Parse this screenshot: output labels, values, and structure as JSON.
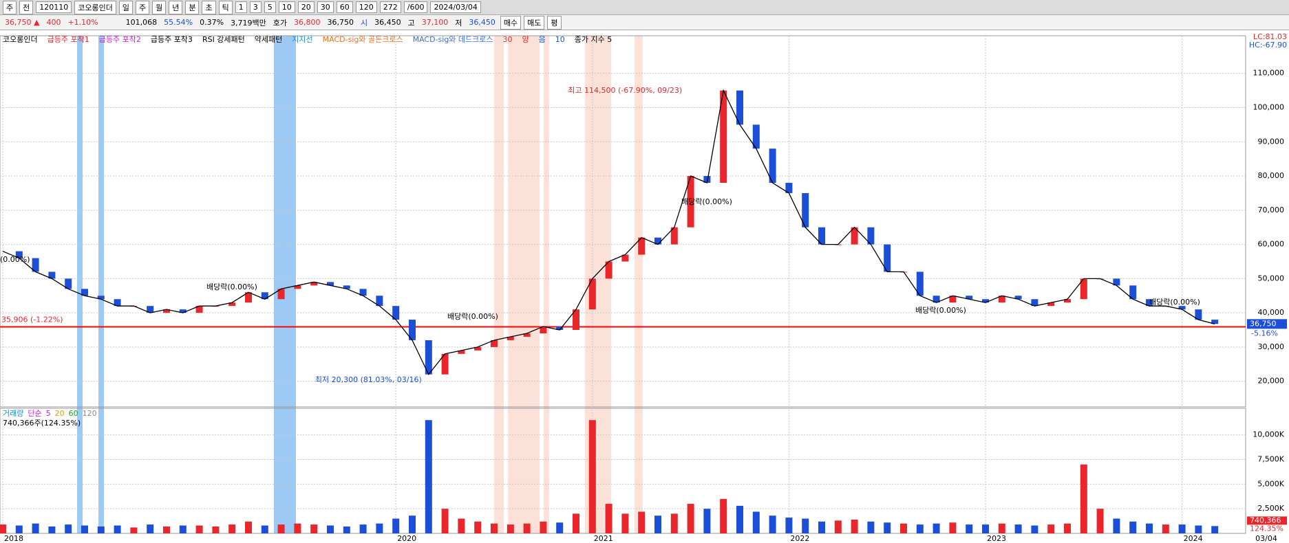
{
  "toolbar": {
    "row1": [
      "주",
      "전",
      "120110",
      "코오롱인더",
      "일",
      "주",
      "월",
      "년",
      "분",
      "초",
      "틱",
      "1",
      "3",
      "5",
      "10",
      "20",
      "30",
      "60",
      "120",
      "272",
      "/600",
      "2024/03/04"
    ],
    "row2": [
      "36,750 ▲",
      "400",
      "+1.10%",
      "101,068",
      "55.54%",
      "0.37%",
      "3,719백만",
      "호가",
      "36,800",
      "36,750",
      "시",
      "36,450",
      "고",
      "37,100",
      "저",
      "36,450",
      "매수",
      "매도",
      "평"
    ]
  },
  "legend": [
    "코오롱인더",
    "급등주 포착1",
    "급등주 포착2",
    "급등주 포착3",
    "RSI 강세패턴",
    "약세패턴",
    "지지선",
    "MACD-sig와 골든크로스",
    "MACD-sig와 데드크로스",
    "30",
    "양",
    "음",
    "10",
    "종가 지수 5"
  ],
  "legend_right": [
    "LC:81.03",
    "HC:-67.90"
  ],
  "chart_data": [
    {
      "type": "candlestick",
      "categories": [
        "2018",
        null,
        null,
        null,
        null,
        null,
        null,
        null,
        null,
        null,
        null,
        null,
        null,
        null,
        null,
        null,
        null,
        null,
        null,
        null,
        null,
        null,
        null,
        null,
        "2020",
        null,
        null,
        null,
        null,
        null,
        null,
        null,
        null,
        null,
        null,
        null,
        "2021",
        null,
        null,
        null,
        null,
        null,
        null,
        null,
        null,
        null,
        null,
        null,
        "2022",
        null,
        null,
        null,
        null,
        null,
        null,
        null,
        null,
        null,
        null,
        null,
        "2023",
        null,
        null,
        null,
        null,
        null,
        null,
        null,
        null,
        null,
        null,
        null,
        "2024",
        null,
        null
      ],
      "series": [
        {
          "color": "#e8262b",
          "values": [
            58000,
            56000,
            52000,
            50000,
            47000,
            45000,
            44000,
            42000,
            42000,
            40000,
            41000,
            40000,
            42000,
            42000,
            43000,
            46000,
            44000,
            47000,
            48000,
            49000,
            48000,
            47000,
            45000,
            42000,
            38000,
            32000,
            22000,
            28000,
            29000,
            30000,
            32000,
            33000,
            34000,
            36000,
            35000,
            41000,
            50000,
            55000,
            57000,
            62000,
            60000,
            65000,
            80000,
            78000,
            105000,
            95000,
            88000,
            78000,
            75000,
            65000,
            60000,
            60000,
            65000,
            60000,
            52000,
            52000,
            45000,
            43000,
            45000,
            44000,
            43000,
            45000,
            44000,
            42000,
            43000,
            44000,
            50000,
            50000,
            48000,
            44000,
            42000,
            42000,
            41000,
            38000,
            36750
          ]
        }
      ],
      "ylim": [
        12500,
        121000
      ],
      "yticks": [
        {
          "value": 20000,
          "label": "20,000"
        },
        {
          "value": 30000,
          "label": "30,000"
        },
        {
          "value": 40000,
          "label": "40,000"
        },
        {
          "value": 50000,
          "label": "50,000"
        },
        {
          "value": 60000,
          "label": "60,000"
        },
        {
          "value": 70000,
          "label": "70,000"
        },
        {
          "value": 80000,
          "label": "80,000"
        },
        {
          "value": 90000,
          "label": "90,000"
        },
        {
          "value": 100000,
          "label": "100,000"
        },
        {
          "value": 110000,
          "label": "110,000"
        }
      ],
      "support_line": {
        "value": 35906,
        "label": "35,906 (-1.22%)"
      },
      "current_price": {
        "value": 36750,
        "label": "36,750"
      },
      "current_change": "-5.16%",
      "annotations": [
        "최고 114,500 (-67.90%, 09/23)",
        "최저 20,300 (81.03%, 03/16)",
        "배당락(0.00%)",
        "배당락(0.00%)",
        "배당락(0.00%)",
        "배당락(0.00%)",
        "배당락(0.00%)",
        "(0.00%)"
      ],
      "cursor_date": "03/04"
    },
    {
      "type": "bar",
      "legend": [
        "거래량",
        "단순",
        "5",
        "20",
        "60",
        "120"
      ],
      "summary": "740,366주(124.35%)",
      "series": [
        {
          "color": "#e8262b",
          "values": [
            900,
            800,
            1000,
            700,
            900,
            800,
            700,
            800,
            600,
            900,
            700,
            800,
            800,
            700,
            900,
            1200,
            800,
            900,
            1000,
            900,
            800,
            700,
            900,
            1000,
            1500,
            1800,
            11500,
            2500,
            1500,
            1200,
            1000,
            900,
            1000,
            1200,
            1100,
            2000,
            11500,
            3000,
            2000,
            2200,
            1800,
            2000,
            3000,
            2500,
            3500,
            2800,
            2200,
            1800,
            1600,
            1500,
            1200,
            1300,
            1400,
            1200,
            1100,
            1000,
            900,
            1000,
            1100,
            900,
            900,
            1000,
            900,
            800,
            900,
            1000,
            7000,
            2500,
            1500,
            1200,
            1000,
            900,
            900,
            800,
            740.366
          ]
        }
      ],
      "ylim": [
        0,
        12700
      ],
      "yticks": [
        {
          "value": 2500,
          "label": "2,500K"
        },
        {
          "value": 5000,
          "label": "5,000K"
        },
        {
          "value": 7500,
          "label": "7,500K"
        },
        {
          "value": 10000,
          "label": "10,000K"
        }
      ],
      "last_value": {
        "value": 740.366,
        "label": "740,366"
      },
      "last_ratio": "124.35%"
    }
  ]
}
